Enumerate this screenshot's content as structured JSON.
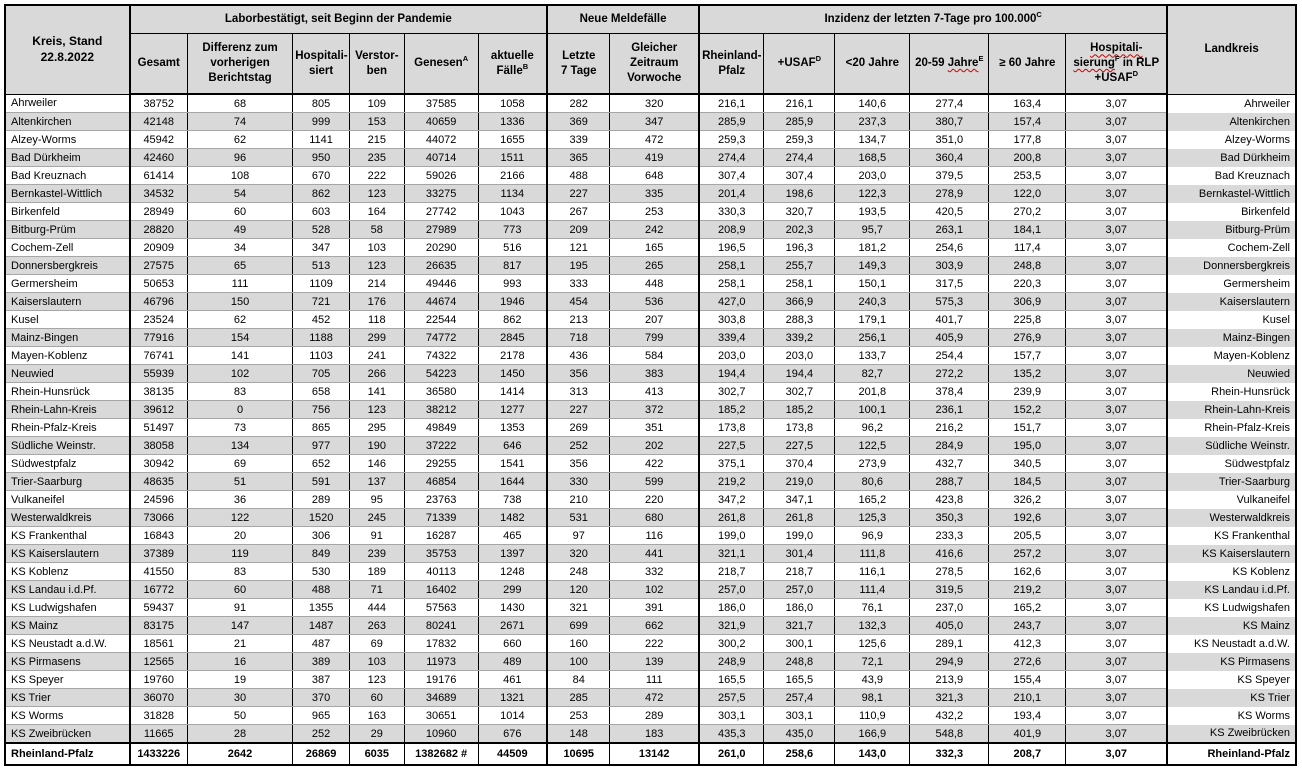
{
  "colors": {
    "stripe": "#d9d9d9",
    "header_bg": "#d9d9d9",
    "border": "#000000",
    "gridline": "#a6a6a6",
    "squiggle": "#cc0000"
  },
  "table": {
    "corner": {
      "lines": [
        [
          {
            "t": "Kreis, Stand"
          }
        ],
        [
          {
            "t": "22.8.2022"
          }
        ]
      ]
    },
    "landkreis_label": {
      "lines": [
        [
          {
            "t": "Landkreis"
          }
        ]
      ]
    },
    "groups": [
      {
        "id": "group-laborbestaetigt",
        "span": 6,
        "label": {
          "lines": [
            [
              {
                "t": "Laborbestätigt, seit Beginn der Pandemie"
              }
            ]
          ]
        }
      },
      {
        "id": "group-neue-meldefaelle",
        "span": 2,
        "label": {
          "lines": [
            [
              {
                "t": "Neue Meldefälle"
              }
            ]
          ]
        }
      },
      {
        "id": "group-inzidenz",
        "span": 6,
        "label": {
          "lines": [
            [
              {
                "t": "Inzidenz der letzten 7-Tage pro 100.000"
              },
              {
                "t": "C",
                "sup": true
              }
            ]
          ]
        }
      }
    ],
    "columns": [
      {
        "id": "gesamt",
        "label": {
          "lines": [
            [
              {
                "t": "Gesamt"
              }
            ]
          ]
        }
      },
      {
        "id": "differenz",
        "label": {
          "lines": [
            [
              {
                "t": "Differenz zum"
              }
            ],
            [
              {
                "t": "vorherigen"
              }
            ],
            [
              {
                "t": "Berichtstag"
              }
            ]
          ]
        }
      },
      {
        "id": "hospitalisiert",
        "label": {
          "lines": [
            [
              {
                "t": "Hospitali-"
              }
            ],
            [
              {
                "t": "siert"
              }
            ]
          ]
        }
      },
      {
        "id": "verstorben",
        "label": {
          "lines": [
            [
              {
                "t": "Verstor-"
              }
            ],
            [
              {
                "t": "ben"
              }
            ]
          ]
        }
      },
      {
        "id": "genesen",
        "label": {
          "lines": [
            [
              {
                "t": "Genesen"
              },
              {
                "t": "A",
                "sup": true
              }
            ]
          ]
        }
      },
      {
        "id": "aktuelle-faelle",
        "label": {
          "lines": [
            [
              {
                "t": "aktuelle"
              }
            ],
            [
              {
                "t": "Fälle"
              },
              {
                "t": "B",
                "sup": true
              }
            ]
          ]
        }
      },
      {
        "id": "letzte-7-tage",
        "label": {
          "lines": [
            [
              {
                "t": "Letzte"
              }
            ],
            [
              {
                "t": "7 Tage"
              }
            ]
          ]
        }
      },
      {
        "id": "vorwoche",
        "label": {
          "lines": [
            [
              {
                "t": "Gleicher"
              }
            ],
            [
              {
                "t": "Zeitraum"
              }
            ],
            [
              {
                "t": "Vorwoche"
              }
            ]
          ]
        }
      },
      {
        "id": "inzidenz-rlp",
        "label": {
          "lines": [
            [
              {
                "t": "Rheinland-"
              }
            ],
            [
              {
                "t": "Pfalz"
              }
            ]
          ]
        }
      },
      {
        "id": "inzidenz-usaf",
        "label": {
          "lines": [
            [
              {
                "t": "+USAF"
              },
              {
                "t": "D",
                "sup": true
              }
            ]
          ]
        }
      },
      {
        "id": "unter-20",
        "label": {
          "lines": [
            [
              {
                "t": "<20 Jahre"
              }
            ]
          ]
        }
      },
      {
        "id": "20-59",
        "label": {
          "lines": [
            [
              {
                "t": "20-59 "
              },
              {
                "t": "Jahre",
                "wavy": true
              },
              {
                "t": "E",
                "sup": true
              }
            ]
          ]
        }
      },
      {
        "id": "ab-60",
        "label": {
          "lines": [
            [
              {
                "t": "≥ 60 Jahre"
              }
            ]
          ]
        }
      },
      {
        "id": "hosp-inzidenz",
        "label": {
          "lines": [
            [
              {
                "t": "Hospitali-",
                "wavy": true
              }
            ],
            [
              {
                "t": "sierung",
                "wavy": true
              },
              {
                "t": "F",
                "sup": true
              },
              {
                "t": " in RLP"
              }
            ],
            [
              {
                "t": "+USAF"
              },
              {
                "t": "D",
                "sup": true
              }
            ]
          ]
        }
      }
    ],
    "rows": [
      {
        "kreis": "Ahrweiler",
        "values": [
          "38752",
          "68",
          "805",
          "109",
          "37585",
          "1058",
          "282",
          "320",
          "216,1",
          "216,1",
          "140,6",
          "277,4",
          "163,4",
          "3,07"
        ]
      },
      {
        "kreis": "Altenkirchen",
        "values": [
          "42148",
          "74",
          "999",
          "153",
          "40659",
          "1336",
          "369",
          "347",
          "285,9",
          "285,9",
          "237,3",
          "380,7",
          "157,4",
          "3,07"
        ]
      },
      {
        "kreis": "Alzey-Worms",
        "values": [
          "45942",
          "62",
          "1141",
          "215",
          "44072",
          "1655",
          "339",
          "472",
          "259,3",
          "259,3",
          "134,7",
          "351,0",
          "177,8",
          "3,07"
        ]
      },
      {
        "kreis": "Bad Dürkheim",
        "values": [
          "42460",
          "96",
          "950",
          "235",
          "40714",
          "1511",
          "365",
          "419",
          "274,4",
          "274,4",
          "168,5",
          "360,4",
          "200,8",
          "3,07"
        ]
      },
      {
        "kreis": "Bad Kreuznach",
        "values": [
          "61414",
          "108",
          "670",
          "222",
          "59026",
          "2166",
          "488",
          "648",
          "307,4",
          "307,4",
          "203,0",
          "379,5",
          "253,5",
          "3,07"
        ]
      },
      {
        "kreis": "Bernkastel-Wittlich",
        "values": [
          "34532",
          "54",
          "862",
          "123",
          "33275",
          "1134",
          "227",
          "335",
          "201,4",
          "198,6",
          "122,3",
          "278,9",
          "122,0",
          "3,07"
        ]
      },
      {
        "kreis": "Birkenfeld",
        "values": [
          "28949",
          "60",
          "603",
          "164",
          "27742",
          "1043",
          "267",
          "253",
          "330,3",
          "320,7",
          "193,5",
          "420,5",
          "270,2",
          "3,07"
        ]
      },
      {
        "kreis": "Bitburg-Prüm",
        "values": [
          "28820",
          "49",
          "528",
          "58",
          "27989",
          "773",
          "209",
          "242",
          "208,9",
          "202,3",
          "95,7",
          "263,1",
          "184,1",
          "3,07"
        ]
      },
      {
        "kreis": "Cochem-Zell",
        "values": [
          "20909",
          "34",
          "347",
          "103",
          "20290",
          "516",
          "121",
          "165",
          "196,5",
          "196,3",
          "181,2",
          "254,6",
          "117,4",
          "3,07"
        ]
      },
      {
        "kreis": "Donnersbergkreis",
        "values": [
          "27575",
          "65",
          "513",
          "123",
          "26635",
          "817",
          "195",
          "265",
          "258,1",
          "255,7",
          "149,3",
          "303,9",
          "248,8",
          "3,07"
        ]
      },
      {
        "kreis": "Germersheim",
        "values": [
          "50653",
          "111",
          "1109",
          "214",
          "49446",
          "993",
          "333",
          "448",
          "258,1",
          "258,1",
          "150,1",
          "317,5",
          "220,3",
          "3,07"
        ]
      },
      {
        "kreis": "Kaiserslautern",
        "values": [
          "46796",
          "150",
          "721",
          "176",
          "44674",
          "1946",
          "454",
          "536",
          "427,0",
          "366,9",
          "240,3",
          "575,3",
          "306,9",
          "3,07"
        ]
      },
      {
        "kreis": "Kusel",
        "values": [
          "23524",
          "62",
          "452",
          "118",
          "22544",
          "862",
          "213",
          "207",
          "303,8",
          "288,3",
          "179,1",
          "401,7",
          "225,8",
          "3,07"
        ]
      },
      {
        "kreis": "Mainz-Bingen",
        "values": [
          "77916",
          "154",
          "1188",
          "299",
          "74772",
          "2845",
          "718",
          "799",
          "339,4",
          "339,2",
          "256,1",
          "405,9",
          "276,9",
          "3,07"
        ]
      },
      {
        "kreis": "Mayen-Koblenz",
        "values": [
          "76741",
          "141",
          "1103",
          "241",
          "74322",
          "2178",
          "436",
          "584",
          "203,0",
          "203,0",
          "133,7",
          "254,4",
          "157,7",
          "3,07"
        ]
      },
      {
        "kreis": "Neuwied",
        "values": [
          "55939",
          "102",
          "705",
          "266",
          "54223",
          "1450",
          "356",
          "383",
          "194,4",
          "194,4",
          "82,7",
          "272,2",
          "135,2",
          "3,07"
        ]
      },
      {
        "kreis": "Rhein-Hunsrück",
        "values": [
          "38135",
          "83",
          "658",
          "141",
          "36580",
          "1414",
          "313",
          "413",
          "302,7",
          "302,7",
          "201,8",
          "378,4",
          "239,9",
          "3,07"
        ]
      },
      {
        "kreis": "Rhein-Lahn-Kreis",
        "values": [
          "39612",
          "0",
          "756",
          "123",
          "38212",
          "1277",
          "227",
          "372",
          "185,2",
          "185,2",
          "100,1",
          "236,1",
          "152,2",
          "3,07"
        ]
      },
      {
        "kreis": "Rhein-Pfalz-Kreis",
        "values": [
          "51497",
          "73",
          "865",
          "295",
          "49849",
          "1353",
          "269",
          "351",
          "173,8",
          "173,8",
          "96,2",
          "216,2",
          "151,7",
          "3,07"
        ]
      },
      {
        "kreis": "Südliche Weinstr.",
        "values": [
          "38058",
          "134",
          "977",
          "190",
          "37222",
          "646",
          "252",
          "202",
          "227,5",
          "227,5",
          "122,5",
          "284,9",
          "195,0",
          "3,07"
        ]
      },
      {
        "kreis": "Südwestpfalz",
        "values": [
          "30942",
          "69",
          "652",
          "146",
          "29255",
          "1541",
          "356",
          "422",
          "375,1",
          "370,4",
          "273,9",
          "432,7",
          "340,5",
          "3,07"
        ]
      },
      {
        "kreis": "Trier-Saarburg",
        "values": [
          "48635",
          "51",
          "591",
          "137",
          "46854",
          "1644",
          "330",
          "599",
          "219,2",
          "219,0",
          "80,6",
          "288,7",
          "184,5",
          "3,07"
        ]
      },
      {
        "kreis": "Vulkaneifel",
        "values": [
          "24596",
          "36",
          "289",
          "95",
          "23763",
          "738",
          "210",
          "220",
          "347,2",
          "347,1",
          "165,2",
          "423,8",
          "326,2",
          "3,07"
        ]
      },
      {
        "kreis": "Westerwaldkreis",
        "values": [
          "73066",
          "122",
          "1520",
          "245",
          "71339",
          "1482",
          "531",
          "680",
          "261,8",
          "261,8",
          "125,3",
          "350,3",
          "192,6",
          "3,07"
        ]
      },
      {
        "kreis": "KS Frankenthal",
        "values": [
          "16843",
          "20",
          "306",
          "91",
          "16287",
          "465",
          "97",
          "116",
          "199,0",
          "199,0",
          "96,9",
          "233,3",
          "205,5",
          "3,07"
        ]
      },
      {
        "kreis": "KS Kaiserslautern",
        "values": [
          "37389",
          "119",
          "849",
          "239",
          "35753",
          "1397",
          "320",
          "441",
          "321,1",
          "301,4",
          "111,8",
          "416,6",
          "257,2",
          "3,07"
        ]
      },
      {
        "kreis": "KS Koblenz",
        "values": [
          "41550",
          "83",
          "530",
          "189",
          "40113",
          "1248",
          "248",
          "332",
          "218,7",
          "218,7",
          "116,1",
          "278,5",
          "162,6",
          "3,07"
        ]
      },
      {
        "kreis": "KS Landau i.d.Pf.",
        "values": [
          "16772",
          "60",
          "488",
          "71",
          "16402",
          "299",
          "120",
          "102",
          "257,0",
          "257,0",
          "111,4",
          "319,5",
          "219,2",
          "3,07"
        ]
      },
      {
        "kreis": "KS Ludwigshafen",
        "values": [
          "59437",
          "91",
          "1355",
          "444",
          "57563",
          "1430",
          "321",
          "391",
          "186,0",
          "186,0",
          "76,1",
          "237,0",
          "165,2",
          "3,07"
        ]
      },
      {
        "kreis": "KS Mainz",
        "values": [
          "83175",
          "147",
          "1487",
          "263",
          "80241",
          "2671",
          "699",
          "662",
          "321,9",
          "321,7",
          "132,3",
          "405,0",
          "243,7",
          "3,07"
        ]
      },
      {
        "kreis": "KS Neustadt a.d.W.",
        "values": [
          "18561",
          "21",
          "487",
          "69",
          "17832",
          "660",
          "160",
          "222",
          "300,2",
          "300,1",
          "125,6",
          "289,1",
          "412,3",
          "3,07"
        ]
      },
      {
        "kreis": "KS Pirmasens",
        "values": [
          "12565",
          "16",
          "389",
          "103",
          "11973",
          "489",
          "100",
          "139",
          "248,9",
          "248,8",
          "72,1",
          "294,9",
          "272,6",
          "3,07"
        ]
      },
      {
        "kreis": "KS Speyer",
        "values": [
          "19760",
          "19",
          "387",
          "123",
          "19176",
          "461",
          "84",
          "111",
          "165,5",
          "165,5",
          "43,9",
          "213,9",
          "155,4",
          "3,07"
        ]
      },
      {
        "kreis": "KS Trier",
        "values": [
          "36070",
          "30",
          "370",
          "60",
          "34689",
          "1321",
          "285",
          "472",
          "257,5",
          "257,4",
          "98,1",
          "321,3",
          "210,1",
          "3,07"
        ]
      },
      {
        "kreis": "KS Worms",
        "values": [
          "31828",
          "50",
          "965",
          "163",
          "30651",
          "1014",
          "253",
          "289",
          "303,1",
          "303,1",
          "110,9",
          "432,2",
          "193,4",
          "3,07"
        ]
      },
      {
        "kreis": "KS Zweibrücken",
        "values": [
          "11665",
          "28",
          "252",
          "29",
          "10960",
          "676",
          "148",
          "183",
          "435,3",
          "435,0",
          "166,9",
          "548,8",
          "401,9",
          "3,07"
        ]
      }
    ],
    "total": {
      "kreis": "Rheinland-Pfalz",
      "values": [
        "1433226",
        "2642",
        "26869",
        "6035",
        "1382682 #",
        "44509",
        "10695",
        "13142",
        "261,0",
        "258,6",
        "143,0",
        "332,3",
        "208,7",
        "3,07"
      ]
    }
  }
}
